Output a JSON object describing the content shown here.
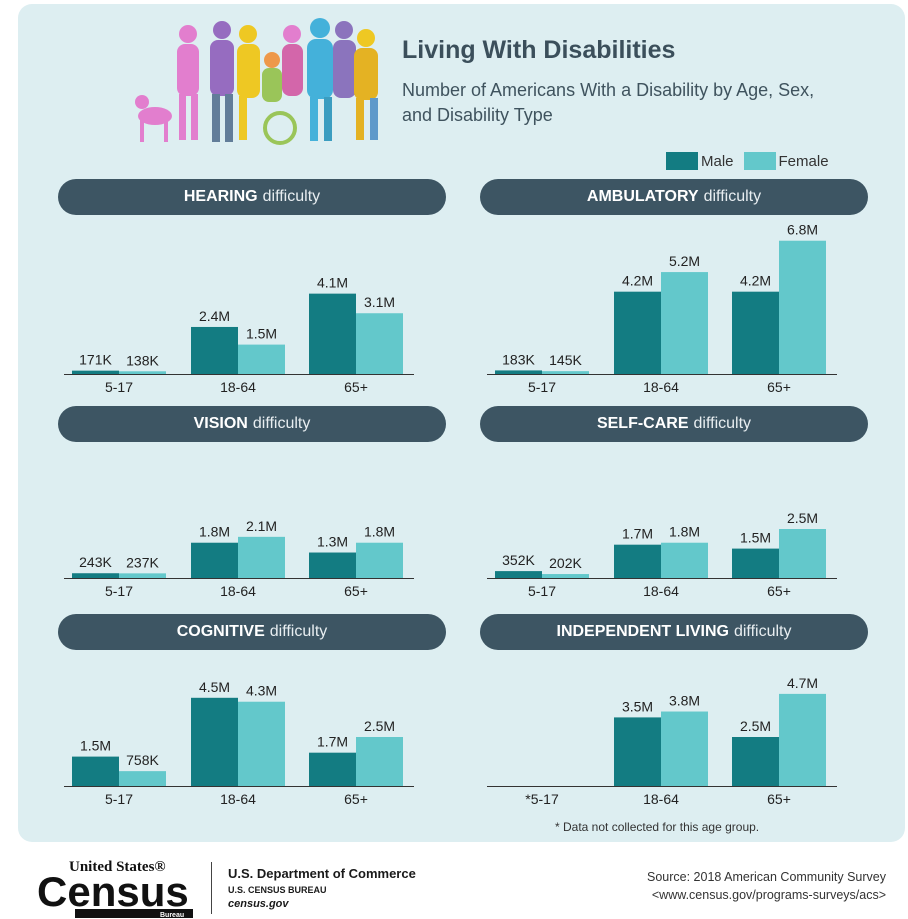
{
  "header": {
    "title": "Living With Disabilities",
    "subtitle": "Number of Americans With a Disability by Age, Sex, and Disability Type"
  },
  "colors": {
    "male": "#137c82",
    "female": "#63c8cb",
    "header_bg": "#3d5563",
    "panel_bg": "#ddeef1"
  },
  "chart_data": [
    {
      "type": "bar",
      "panel": "hearing",
      "title_bold": "HEARING",
      "title_rest": "difficulty",
      "categories": [
        "5-17",
        "18-64",
        "65+"
      ],
      "series": [
        {
          "name": "Male",
          "values": [
            0.171,
            2.4,
            4.1
          ],
          "labels": [
            "171K",
            "2.4M",
            "4.1M"
          ]
        },
        {
          "name": "Female",
          "values": [
            0.138,
            1.5,
            3.1
          ],
          "labels": [
            "138K",
            "1.5M",
            "3.1M"
          ]
        }
      ]
    },
    {
      "type": "bar",
      "panel": "ambulatory",
      "title_bold": "AMBULATORY",
      "title_rest": "difficulty",
      "categories": [
        "5-17",
        "18-64",
        "65+"
      ],
      "series": [
        {
          "name": "Male",
          "values": [
            0.183,
            4.2,
            4.2
          ],
          "labels": [
            "183K",
            "4.2M",
            "4.2M"
          ]
        },
        {
          "name": "Female",
          "values": [
            0.145,
            5.2,
            6.8
          ],
          "labels": [
            "145K",
            "5.2M",
            "6.8M"
          ]
        }
      ]
    },
    {
      "type": "bar",
      "panel": "vision",
      "title_bold": "VISION",
      "title_rest": "difficulty",
      "categories": [
        "5-17",
        "18-64",
        "65+"
      ],
      "series": [
        {
          "name": "Male",
          "values": [
            0.243,
            1.8,
            1.3
          ],
          "labels": [
            "243K",
            "1.8M",
            "1.3M"
          ]
        },
        {
          "name": "Female",
          "values": [
            0.237,
            2.1,
            1.8
          ],
          "labels": [
            "237K",
            "2.1M",
            "1.8M"
          ]
        }
      ]
    },
    {
      "type": "bar",
      "panel": "self-care",
      "title_bold": "SELF-CARE",
      "title_rest": "difficulty",
      "categories": [
        "5-17",
        "18-64",
        "65+"
      ],
      "series": [
        {
          "name": "Male",
          "values": [
            0.352,
            1.7,
            1.5
          ],
          "labels": [
            "352K",
            "1.7M",
            "1.5M"
          ]
        },
        {
          "name": "Female",
          "values": [
            0.202,
            1.8,
            2.5
          ],
          "labels": [
            "202K",
            "1.8M",
            "2.5M"
          ]
        }
      ]
    },
    {
      "type": "bar",
      "panel": "cognitive",
      "title_bold": "COGNITIVE",
      "title_rest": "difficulty",
      "categories": [
        "5-17",
        "18-64",
        "65+"
      ],
      "series": [
        {
          "name": "Male",
          "values": [
            1.5,
            4.5,
            1.7
          ],
          "labels": [
            "1.5M",
            "4.5M",
            "1.7M"
          ]
        },
        {
          "name": "Female",
          "values": [
            0.758,
            4.3,
            2.5
          ],
          "labels": [
            "758K",
            "4.3M",
            "2.5M"
          ]
        }
      ]
    },
    {
      "type": "bar",
      "panel": "independent-living",
      "title_bold": "INDEPENDENT LIVING",
      "title_rest": "difficulty",
      "categories": [
        "*5-17",
        "18-64",
        "65+"
      ],
      "series": [
        {
          "name": "Male",
          "values": [
            null,
            3.5,
            2.5
          ],
          "labels": [
            "",
            "3.5M",
            "2.5M"
          ]
        },
        {
          "name": "Female",
          "values": [
            null,
            3.8,
            4.7
          ],
          "labels": [
            "",
            "3.8M",
            "4.7M"
          ]
        }
      ]
    }
  ],
  "legend": {
    "male": "Male",
    "female": "Female"
  },
  "footnote": "* Data not collected for this age group.",
  "footer": {
    "logo_line1": "United States®",
    "logo_line2": "Census",
    "logo_line3": "Bureau",
    "dept_line1": "U.S. Department of Commerce",
    "dept_line2": "U.S. CENSUS BUREAU",
    "dept_line3": "census.gov",
    "source_line1": "Source: 2018 American Community Survey",
    "source_line2": "<www.census.gov/programs-surveys/acs>"
  }
}
